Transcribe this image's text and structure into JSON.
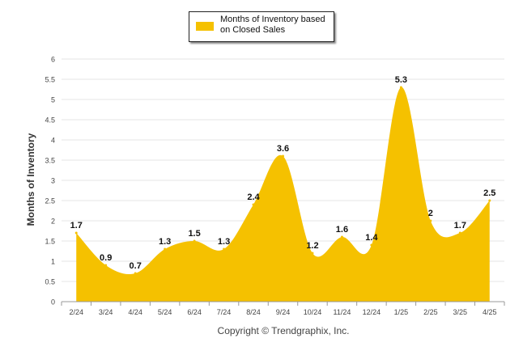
{
  "chart_data": {
    "type": "area",
    "categories": [
      "2/24",
      "3/24",
      "4/24",
      "5/24",
      "6/24",
      "7/24",
      "8/24",
      "9/24",
      "10/24",
      "11/24",
      "12/24",
      "1/25",
      "2/25",
      "3/25",
      "4/25"
    ],
    "series": [
      {
        "name": "Months of Inventory based on Closed Sales",
        "values": [
          1.7,
          0.9,
          0.7,
          1.3,
          1.5,
          1.3,
          2.4,
          3.6,
          1.2,
          1.6,
          1.4,
          5.3,
          2,
          1.7,
          2.5
        ],
        "labels": [
          "1.7",
          "0.9",
          "0.7",
          "1.3",
          "1.5",
          "1.3",
          "2.4",
          "3.6",
          "1.2",
          "1.6",
          "1.4",
          "5.3",
          "2",
          "1.7",
          "2.5"
        ]
      }
    ],
    "ylabel": "Months of Inventory",
    "ylim": [
      0,
      6
    ],
    "yticks": [
      "0",
      "0.5",
      "1",
      "1.5",
      "2",
      "2.5",
      "3",
      "3.5",
      "4",
      "4.5",
      "5",
      "5.5",
      "6"
    ],
    "grid": true,
    "legend_position": "top-center",
    "color": "#F5C100"
  },
  "legend": {
    "label": "Months of Inventory based on Closed Sales"
  },
  "footer": {
    "copyright": "Copyright © Trendgraphix, Inc."
  }
}
